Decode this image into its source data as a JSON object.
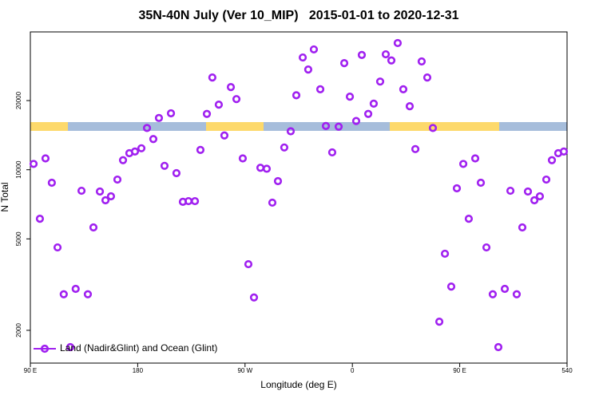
{
  "chart_data": {
    "type": "scatter",
    "title": "35N-40N July (Ver 10_MIP)   2015-01-01 to 2020-12-31",
    "x_label": "Longitude (deg E)",
    "y_label": "N Total",
    "log_y": true,
    "legend_position": "bottom-left",
    "xlim": [
      90,
      540
    ],
    "ylim": [
      1440,
      39800
    ],
    "xticks": [
      {
        "value": 90,
        "label": "90 E"
      },
      180,
      {
        "value": 270,
        "label": "90 W"
      },
      {
        "value": 360,
        "label": "0"
      },
      {
        "value": 450,
        "label": "90 E"
      },
      540
    ],
    "yticks": [
      2000,
      5000,
      10000,
      20000
    ],
    "series": [
      {
        "name": "Land (Nadir&Glint) and Ocean (Glint)",
        "color": "#a020f0",
        "x": [
          92.7,
          98,
          102.7,
          108,
          112.8,
          118,
          123.5,
          128,
          132.9,
          138.2,
          142.9,
          148.3,
          153,
          157.6,
          163,
          167.7,
          173,
          177.7,
          183.1,
          187.8,
          193.1,
          197.8,
          202.5,
          207.9,
          212.5,
          217.9,
          222.6,
          228,
          232.6,
          238,
          242.6,
          248,
          252.7,
          258.1,
          262.8,
          268.1,
          272.8,
          277.5,
          282.9,
          288.2,
          292.9,
          297.6,
          302.9,
          308.3,
          313,
          318.4,
          323,
          327.7,
          333.1,
          337.8,
          343.1,
          348.5,
          353.2,
          357.9,
          363.2,
          367.9,
          373.3,
          377.9,
          383.3,
          388,
          392.7,
          398,
          402.7,
          408.1,
          412.8,
          418.1,
          422.8,
          427.5,
          432.9,
          437.6,
          442.9,
          447.6,
          453,
          457.6,
          463,
          467.7,
          472.4,
          477.7,
          482.4,
          487.8,
          492.5,
          497.8,
          502.5,
          507.2,
          512.6,
          517.2,
          522.6,
          527.3,
          532.6,
          537.3
        ],
        "values": [
          10600,
          6120,
          11200,
          8780,
          4590,
          2870,
          1690,
          3030,
          8100,
          2870,
          5610,
          8040,
          7360,
          7660,
          9060,
          11000,
          11800,
          12000,
          12400,
          15200,
          13600,
          16800,
          10400,
          17600,
          9660,
          7250,
          7300,
          7300,
          12200,
          17500,
          25200,
          19200,
          14100,
          22900,
          20300,
          11200,
          3880,
          2780,
          10200,
          10100,
          7190,
          8920,
          12500,
          14700,
          21100,
          30800,
          27300,
          33400,
          22400,
          15500,
          11900,
          15400,
          29100,
          20800,
          16300,
          31600,
          17500,
          19400,
          24200,
          31800,
          29900,
          35600,
          22400,
          18900,
          12300,
          29600,
          25200,
          15200,
          2180,
          4310,
          3100,
          8300,
          10600,
          6120,
          11200,
          8780,
          4590,
          2870,
          1690,
          3030,
          8100,
          2870,
          5610,
          8040,
          7360,
          7660,
          9060,
          11000,
          11800,
          12000
        ]
      }
    ]
  }
}
